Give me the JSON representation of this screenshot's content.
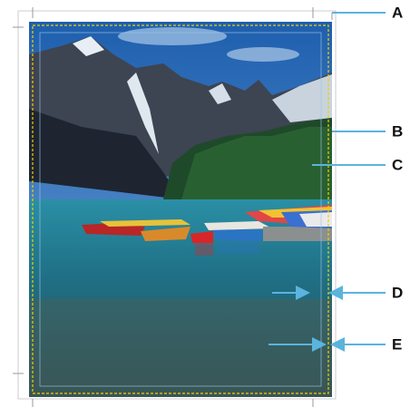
{
  "labels": [
    "A",
    "B",
    "C",
    "D",
    "E"
  ]
}
